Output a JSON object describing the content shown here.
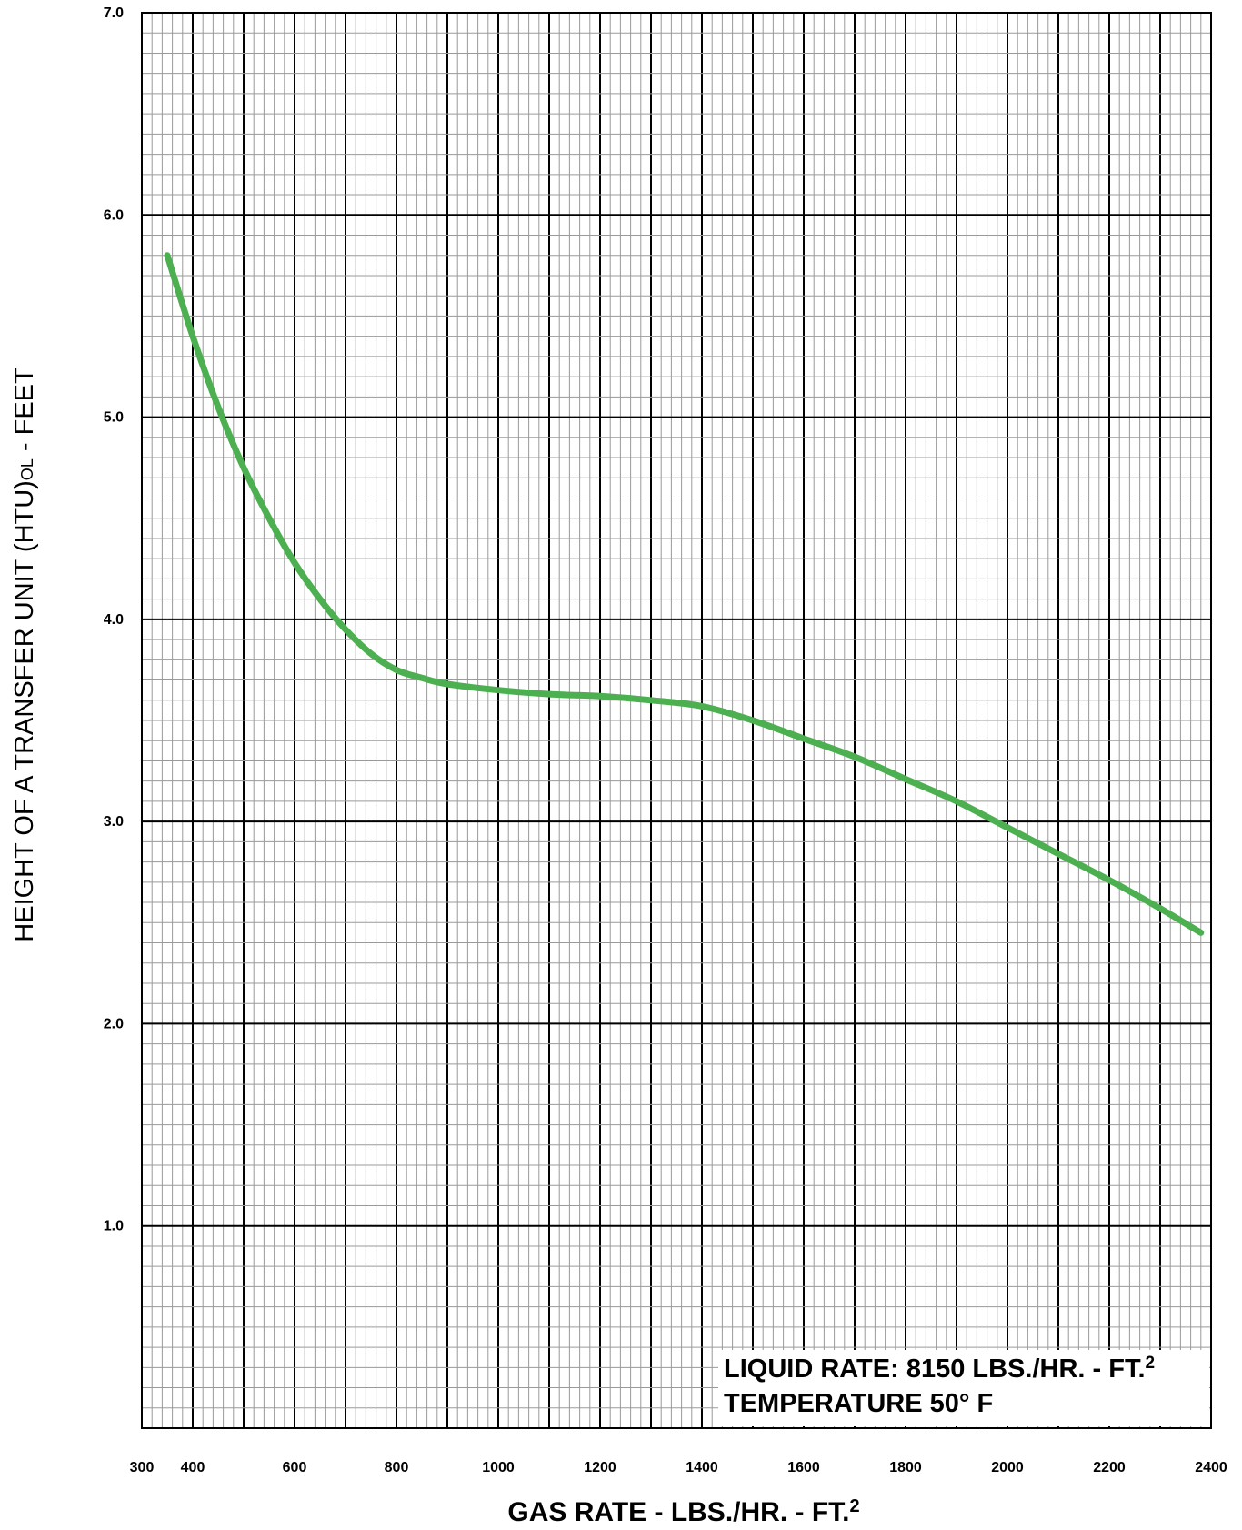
{
  "chart_data": {
    "type": "line",
    "title": "",
    "xlabel": "GAS RATE - LBS./HR. - FT.",
    "xlabel_sup": "2",
    "ylabel_main": "HEIGHT OF A TRANSFER UNIT (HTU)",
    "ylabel_sub": "OL",
    "ylabel_tail": " - FEET",
    "xlim": [
      300,
      2400
    ],
    "ylim": [
      0,
      7.0
    ],
    "x_ticks": [
      300,
      400,
      600,
      800,
      1000,
      1200,
      1400,
      1600,
      1800,
      2000,
      2200,
      2400
    ],
    "y_ticks": [
      1.0,
      2.0,
      3.0,
      4.0,
      5.0,
      6.0,
      7.0
    ],
    "y_tick_labels": [
      "1.0",
      "2.0",
      "3.0",
      "4.0",
      "5.0",
      "6.0",
      "7.0"
    ],
    "grid": true,
    "line_color": "#4caf50",
    "series": [
      {
        "x": [
          350,
          400,
          450,
          500,
          550,
          600,
          650,
          700,
          750,
          800,
          850,
          900,
          1000,
          1100,
          1200,
          1300,
          1400,
          1500,
          1600,
          1700,
          1800,
          1900,
          2000,
          2100,
          2200,
          2300,
          2380
        ],
        "y": [
          5.8,
          5.4,
          5.05,
          4.75,
          4.5,
          4.28,
          4.1,
          3.95,
          3.83,
          3.75,
          3.71,
          3.68,
          3.65,
          3.63,
          3.62,
          3.6,
          3.57,
          3.5,
          3.41,
          3.32,
          3.21,
          3.1,
          2.97,
          2.84,
          2.71,
          2.57,
          2.45
        ]
      }
    ],
    "annotation": {
      "placement": "bottom-right",
      "line1": "LIQUID RATE: 8150 LBS./HR. - FT.",
      "line1_sup": "2",
      "line2": "TEMPERATURE 50° F"
    }
  }
}
